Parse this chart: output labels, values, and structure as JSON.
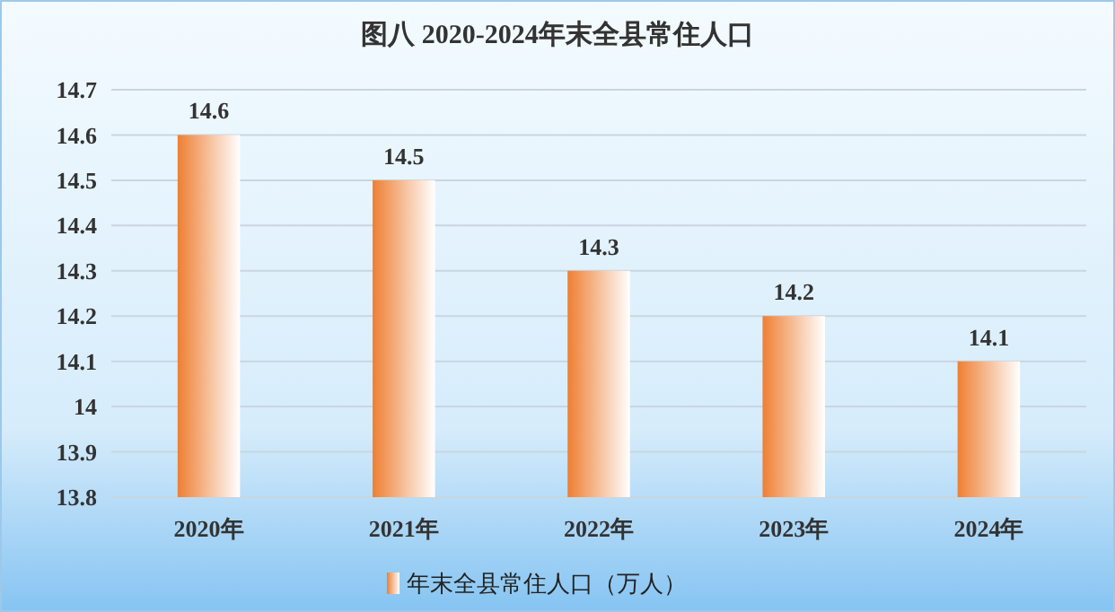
{
  "chart_data": {
    "type": "bar",
    "title": "图八   2020-2024年末全县常住人口",
    "categories": [
      "2020年",
      "2021年",
      "2022年",
      "2023年",
      "2024年"
    ],
    "series": [
      {
        "name": "年末全县常住人口（万人）",
        "color": "#ee7f33",
        "values": [
          14.6,
          14.5,
          14.3,
          14.2,
          14.1
        ]
      }
    ],
    "ylim": [
      13.8,
      14.7
    ],
    "yticks": [
      13.8,
      13.9,
      14,
      14.1,
      14.2,
      14.3,
      14.4,
      14.5,
      14.6,
      14.7
    ],
    "grid": "y",
    "legend": "bottom",
    "data_labels": true
  }
}
